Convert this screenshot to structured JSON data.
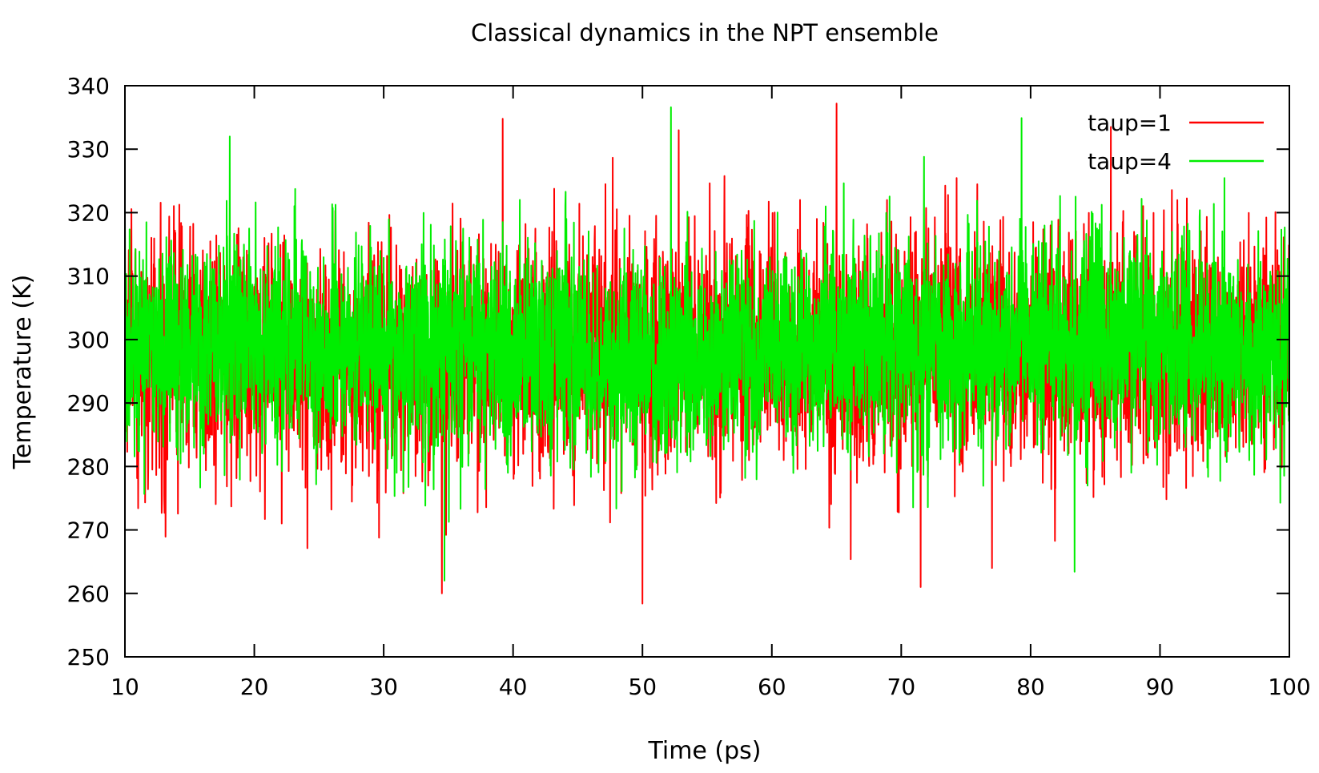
{
  "chart_data": {
    "type": "line",
    "title": "Classical dynamics in the NPT ensemble",
    "xlabel": "Time (ps)",
    "ylabel": "Temperature (K)",
    "xlim": [
      10,
      100
    ],
    "ylim": [
      250,
      340
    ],
    "xticks": [
      10,
      20,
      30,
      40,
      50,
      60,
      70,
      80,
      90,
      100
    ],
    "yticks": [
      250,
      260,
      270,
      280,
      290,
      300,
      310,
      320,
      330,
      340
    ],
    "grid": false,
    "legend_position": "top-right",
    "series": [
      {
        "name": "taup=1",
        "color": "#ff0000",
        "mean": 298,
        "std": 9,
        "x_step": 0.02,
        "min": 258.4,
        "max": 337.2,
        "extremes": [
          {
            "x": 50.0,
            "y": 258.4
          },
          {
            "x": 34.5,
            "y": 260.0
          },
          {
            "x": 71.5,
            "y": 261.0
          },
          {
            "x": 65.0,
            "y": 337.2
          },
          {
            "x": 39.2,
            "y": 334.8
          },
          {
            "x": 52.8,
            "y": 333.0
          },
          {
            "x": 86.2,
            "y": 333.5
          }
        ]
      },
      {
        "name": "taup=4",
        "color": "#00ee00",
        "mean": 299,
        "std": 8,
        "x_step": 0.02,
        "min": 262.0,
        "max": 336.6,
        "extremes": [
          {
            "x": 34.7,
            "y": 262.0
          },
          {
            "x": 83.4,
            "y": 263.4
          },
          {
            "x": 52.2,
            "y": 336.6
          },
          {
            "x": 79.3,
            "y": 334.9
          },
          {
            "x": 18.1,
            "y": 332.0
          }
        ]
      }
    ]
  }
}
